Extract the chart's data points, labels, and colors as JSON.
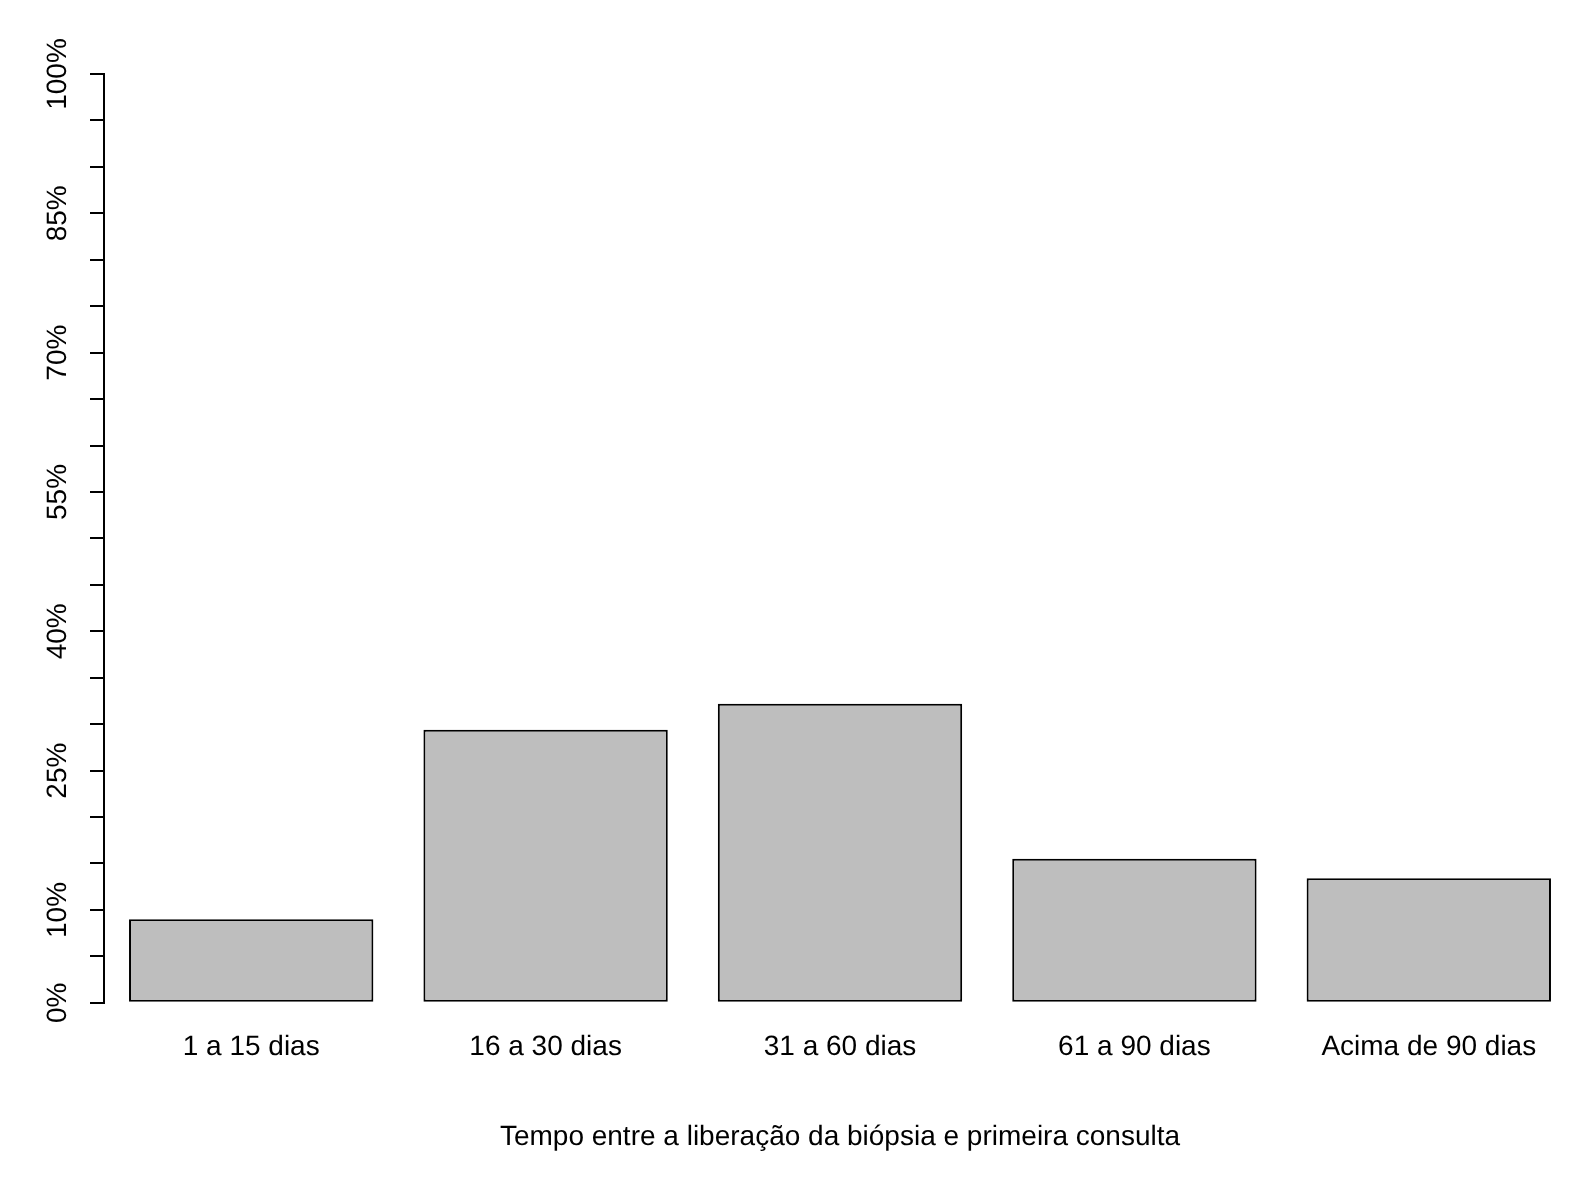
{
  "chart_data": {
    "type": "bar",
    "xlabel": "Tempo entre a liberação da biópsia e primeira consulta",
    "categories": [
      "1 a 15 dias",
      "16 a 30 dias",
      "31 a 60 dias",
      "61 a 90 dias",
      "Acima de 90 dias"
    ],
    "values": [
      9.0,
      29.4,
      32.2,
      15.5,
      13.4
    ],
    "color": "#bebebe",
    "ylim": [
      0,
      100
    ],
    "yticks": [
      {
        "value": 0,
        "label": "0%"
      },
      {
        "value": 5,
        "label": null
      },
      {
        "value": 10,
        "label": "10%"
      },
      {
        "value": 15,
        "label": null
      },
      {
        "value": 20,
        "label": null
      },
      {
        "value": 25,
        "label": "25%"
      },
      {
        "value": 30,
        "label": null
      },
      {
        "value": 35,
        "label": null
      },
      {
        "value": 40,
        "label": "40%"
      },
      {
        "value": 45,
        "label": null
      },
      {
        "value": 50,
        "label": null
      },
      {
        "value": 55,
        "label": "55%"
      },
      {
        "value": 60,
        "label": null
      },
      {
        "value": 65,
        "label": null
      },
      {
        "value": 70,
        "label": "70%"
      },
      {
        "value": 75,
        "label": null
      },
      {
        "value": 80,
        "label": null
      },
      {
        "value": 85,
        "label": "85%"
      },
      {
        "value": 90,
        "label": null
      },
      {
        "value": 95,
        "label": null
      },
      {
        "value": 100,
        "label": "100%"
      }
    ],
    "grid": false,
    "legend": false
  }
}
